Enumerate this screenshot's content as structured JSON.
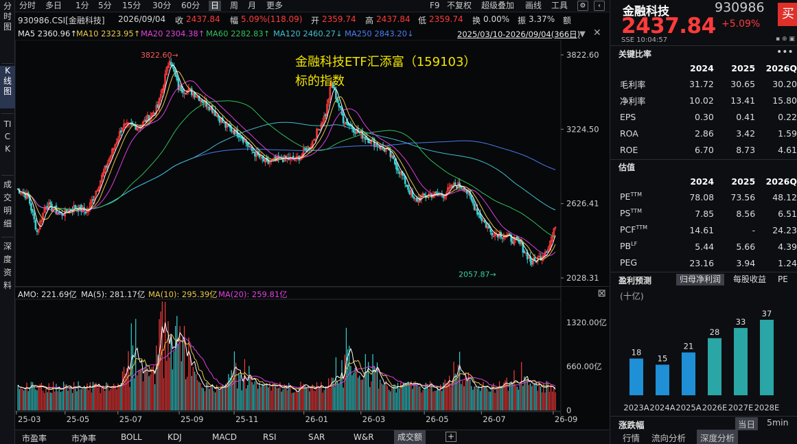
{
  "sidebar": [
    "分时图",
    "K线图",
    "TICK",
    "成交明细",
    "深度资料"
  ],
  "toolbar": {
    "periods": [
      "分时",
      "多日",
      "1分",
      "5分",
      "15分",
      "30分",
      "60分",
      "日",
      "周",
      "月",
      "更多"
    ],
    "active": "日",
    "right": [
      "F9",
      "不复权",
      "超级叠加",
      "画线",
      "工具"
    ]
  },
  "title": {
    "code": "930986.CSI[金融科技]",
    "date": "2026/09/04",
    "shou_l": "收",
    "shou": "2437.84",
    "fu_l": "幅",
    "fu": "5.09%(118.09)",
    "kai_l": "开",
    "kai": "2359.74",
    "gao_l": "高",
    "gao": "2437.84",
    "di_l": "低",
    "di": "2359.74",
    "huan_l": "换",
    "huan": "0.00%",
    "zhen_l": "振",
    "zhen": "3.37%",
    "e_l": "额"
  },
  "ma": {
    "ma5": "MA5 2360.96↑",
    "ma10": "MA10 2323.95↑",
    "ma20": "MA20 2304.38↑",
    "ma60": "MA60 2282.83↑",
    "ma120": "MA120 2460.27↓",
    "ma250": "MA250 2843.20↓",
    "range": "2025/03/10-2026/09/04(366日)"
  },
  "colors": {
    "ma5": "#ffffff",
    "ma10": "#e8c94a",
    "ma20": "#e040e0",
    "ma60": "#2fbf5a",
    "ma120": "#3fbfd0",
    "ma250": "#4a7cf0",
    "up": "#ff3b3b",
    "down": "#3ad1d1"
  },
  "annotation": {
    "line1": "金融科技ETF汇添富（159103）",
    "line2": "标的指数"
  },
  "price_axis": [
    "3822.60",
    "3224.50",
    "2626.41",
    "2028.31"
  ],
  "price_marks": {
    "high": "3822.60",
    "low": "2057.87"
  },
  "time_axis": [
    "25-03",
    "25-05",
    "25-07",
    "25-09",
    "25-11",
    "26-01",
    "26-03",
    "26-05",
    "26-07",
    "26-09"
  ],
  "volume": {
    "amo": "AMO: 221.69亿",
    "ma5": "MA(5): 281.17亿",
    "ma10": "MA(10): 295.39亿",
    "ma20": "MA(20): 259.81亿",
    "axis": [
      "1320.00亿",
      "660.00亿",
      "0"
    ]
  },
  "bottom_tabs": [
    "市盈率",
    "市净率",
    "BOLL",
    "KDJ",
    "MACD",
    "RSI",
    "SAR",
    "W&R",
    "成交额"
  ],
  "bottom_active": "成交额",
  "panel": {
    "name": "金融科技",
    "code": "930986",
    "buy": "买",
    "price": "2437.84",
    "pct": "+5.09%",
    "exch": "SSE  10:04:57",
    "key_title": "关键比率",
    "key_head": [
      "2024",
      "2025",
      "2026Q"
    ],
    "key_rows": [
      [
        "毛利率",
        "31.72",
        "30.65",
        "30.20"
      ],
      [
        "净利率",
        "10.02",
        "13.41",
        "15.80"
      ],
      [
        "EPS",
        "0.30",
        "0.41",
        "0.22"
      ],
      [
        "ROA",
        "2.86",
        "3.42",
        "1.59"
      ],
      [
        "ROE",
        "6.70",
        "8.73",
        "4.61"
      ]
    ],
    "val_title": "估值",
    "val_head": [
      "2024",
      "2025",
      "2026Q"
    ],
    "val_rows": [
      [
        "PE",
        "TTM",
        "78.08",
        "73.56",
        "48.12"
      ],
      [
        "PS",
        "TTM",
        "7.85",
        "8.56",
        "6.51"
      ],
      [
        "PCF",
        "TTM",
        "14.61",
        "-",
        "24.23"
      ],
      [
        "PB",
        "LF",
        "5.44",
        "5.66",
        "4.39"
      ],
      [
        "PEG",
        "",
        "23.16",
        "3.94",
        "1.24"
      ]
    ],
    "fc_title": "盈利预测",
    "fc_tabs": [
      "归母净利润",
      "每股收益",
      "PE"
    ],
    "fc_unit": "(十亿)",
    "fc_bars": [
      {
        "label": "2023A",
        "value": 18
      },
      {
        "label": "2024A",
        "value": 15
      },
      {
        "label": "2025A",
        "value": 21
      },
      {
        "label": "2026E",
        "value": 28
      },
      {
        "label": "2027E",
        "value": 33
      },
      {
        "label": "2028E",
        "value": 37
      }
    ],
    "foot_title": "涨跌幅",
    "foot_small": [
      "当日",
      "5min"
    ],
    "foot_tabs": [
      "行情",
      "流向分析",
      "深度分析"
    ]
  }
}
